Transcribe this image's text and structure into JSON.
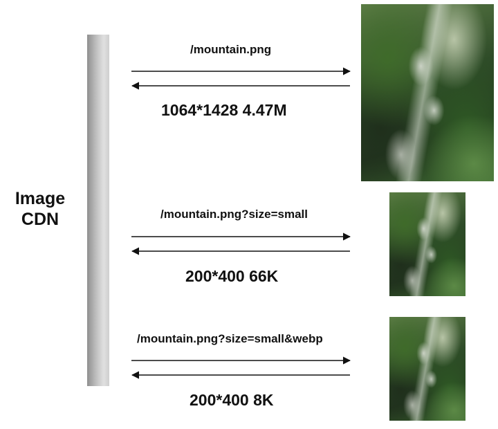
{
  "cdn": {
    "line1": "Image",
    "line2": "CDN"
  },
  "requests": [
    {
      "path": "/mountain.png",
      "result": "1064*1428 4.47M"
    },
    {
      "path": "/mountain.png?size=small",
      "result": "200*400 66K"
    },
    {
      "path": "/mountain.png?size=small&webp",
      "result": "200*400 8K"
    }
  ],
  "colors": {
    "bar": "#b5b5b5",
    "arrow": "#111111",
    "text": "#111111"
  }
}
